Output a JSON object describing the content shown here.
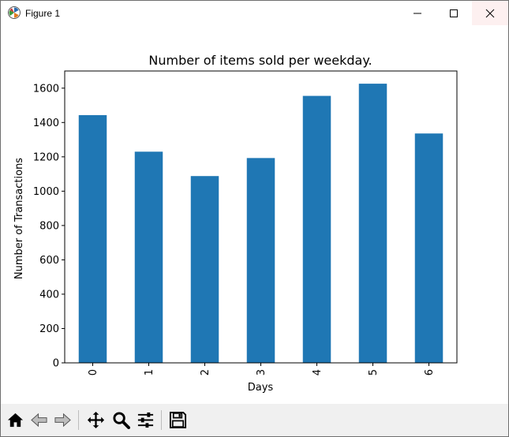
{
  "window": {
    "title": "Figure 1"
  },
  "toolbar": {
    "buttons": [
      {
        "name": "home-button",
        "icon": "home-icon"
      },
      {
        "name": "back-button",
        "icon": "arrow-left-icon"
      },
      {
        "name": "forward-button",
        "icon": "arrow-right-icon"
      },
      {
        "name": "pan-button",
        "icon": "move-icon"
      },
      {
        "name": "zoom-button",
        "icon": "magnifier-icon"
      },
      {
        "name": "configure-subplots-button",
        "icon": "sliders-icon"
      },
      {
        "name": "save-button",
        "icon": "floppy-disk-icon"
      }
    ]
  },
  "colors": {
    "bar": "#1f77b4",
    "toolbar_bg": "#f0f0f0"
  },
  "chart_data": {
    "type": "bar",
    "title": "Number of items sold per weekday.",
    "xlabel": "Days",
    "ylabel": "Number of Transactions",
    "categories": [
      "0",
      "1",
      "2",
      "3",
      "4",
      "5",
      "6"
    ],
    "values": [
      1443,
      1230,
      1088,
      1193,
      1555,
      1626,
      1336
    ],
    "ylim": [
      0,
      1700
    ],
    "yticks": [
      0,
      200,
      400,
      600,
      800,
      1000,
      1200,
      1400,
      1600
    ],
    "xtick_rotation": "vertical",
    "grid": false,
    "legend": "none"
  }
}
